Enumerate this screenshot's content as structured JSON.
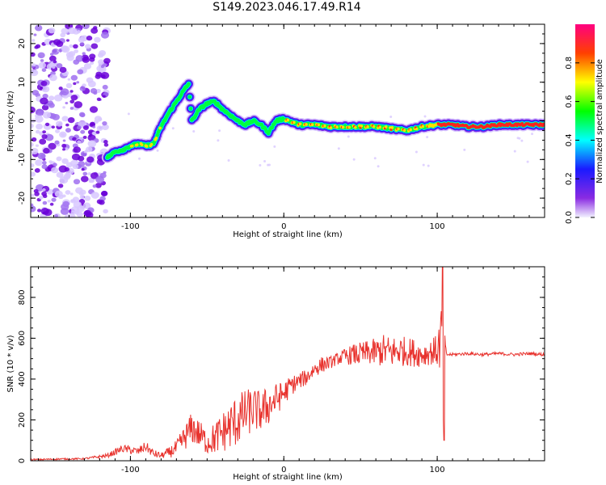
{
  "title": "S149.2023.046.17.49.R14",
  "chart_data": [
    {
      "type": "heatmap",
      "title": "S149.2023.046.17.49.R14",
      "xlabel": "Height of straight line (km)",
      "ylabel": "Frequency (Hz)",
      "xlim": [
        -165,
        170
      ],
      "ylim": [
        -25,
        25
      ],
      "x_ticks": [
        -100,
        0,
        100
      ],
      "y_ticks": [
        -20,
        -10,
        0,
        10,
        20
      ],
      "colorbar": {
        "label": "Normalized spectral amplitude",
        "range": [
          0,
          1
        ],
        "ticks": [
          "0.0",
          "0.2",
          "0.4",
          "0.6",
          "0.8"
        ]
      },
      "ridge": [
        {
          "x": -115,
          "f": -9.5
        },
        {
          "x": -110,
          "f": -8
        },
        {
          "x": -105,
          "f": -7.5
        },
        {
          "x": -100,
          "f": -6.5
        },
        {
          "x": -95,
          "f": -6
        },
        {
          "x": -90,
          "f": -6.5
        },
        {
          "x": -85,
          "f": -6
        },
        {
          "x": -80,
          "f": -1.5
        },
        {
          "x": -75,
          "f": 2
        },
        {
          "x": -70,
          "f": 5
        },
        {
          "x": -65,
          "f": 8
        },
        {
          "x": -62,
          "f": 9.5
        },
        {
          "x": -60,
          "f": 0
        },
        {
          "x": -55,
          "f": 3
        },
        {
          "x": -50,
          "f": 4.5
        },
        {
          "x": -45,
          "f": 5
        },
        {
          "x": -40,
          "f": 3
        },
        {
          "x": -35,
          "f": 1.5
        },
        {
          "x": -30,
          "f": 0
        },
        {
          "x": -25,
          "f": -1
        },
        {
          "x": -20,
          "f": 0
        },
        {
          "x": -15,
          "f": -1
        },
        {
          "x": -10,
          "f": -3
        },
        {
          "x": -5,
          "f": 0
        },
        {
          "x": 0,
          "f": 0.5
        },
        {
          "x": 10,
          "f": -1
        },
        {
          "x": 20,
          "f": -1
        },
        {
          "x": 30,
          "f": -1.5
        },
        {
          "x": 40,
          "f": -1.5
        },
        {
          "x": 50,
          "f": -1.5
        },
        {
          "x": 60,
          "f": -1.5
        },
        {
          "x": 70,
          "f": -2
        },
        {
          "x": 80,
          "f": -2.5
        },
        {
          "x": 90,
          "f": -1.5
        },
        {
          "x": 100,
          "f": -1
        },
        {
          "x": 110,
          "f": -1
        },
        {
          "x": 120,
          "f": -1.5
        },
        {
          "x": 130,
          "f": -1.5
        },
        {
          "x": 140,
          "f": -1
        },
        {
          "x": 150,
          "f": -1
        },
        {
          "x": 160,
          "f": -1
        },
        {
          "x": 170,
          "f": -1
        }
      ]
    },
    {
      "type": "line",
      "xlabel": "Height of straight line (km)",
      "ylabel": "SNR (10 * v/v)",
      "xlim": [
        -165,
        170
      ],
      "ylim": [
        0,
        950
      ],
      "x_ticks": [
        -100,
        0,
        100
      ],
      "y_ticks": [
        0,
        200,
        400,
        600,
        800
      ],
      "color": "#e8322d",
      "series": [
        {
          "x": [
            -165,
            -150,
            -130,
            -115,
            -105,
            -95,
            -90,
            -85,
            -80,
            -75,
            -70,
            -65,
            -60,
            -55,
            -50,
            -45,
            -40,
            -35,
            -30,
            -25,
            -20,
            -15,
            -10,
            -5,
            0,
            5,
            10,
            15,
            20,
            25,
            30,
            35,
            40,
            45,
            50,
            55,
            60,
            65,
            70,
            75,
            80,
            85,
            90,
            95,
            100,
            103,
            104,
            105,
            106,
            110,
            120,
            130,
            140,
            150,
            160,
            170
          ],
          "y": [
            5,
            8,
            10,
            25,
            60,
            45,
            70,
            35,
            25,
            40,
            60,
            110,
            160,
            130,
            90,
            110,
            140,
            170,
            200,
            230,
            250,
            240,
            270,
            300,
            330,
            370,
            390,
            410,
            450,
            470,
            480,
            500,
            510,
            520,
            520,
            530,
            530,
            540,
            530,
            540,
            535,
            530,
            520,
            530,
            540,
            600,
            120,
            560,
            520,
            520,
            525,
            520,
            525,
            520,
            525,
            520
          ],
          "amp": [
            4,
            4,
            4,
            10,
            20,
            20,
            25,
            20,
            15,
            25,
            40,
            60,
            80,
            70,
            60,
            80,
            100,
            120,
            130,
            120,
            110,
            100,
            100,
            80,
            60,
            50,
            40,
            40,
            40,
            40,
            30,
            30,
            40,
            50,
            60,
            60,
            70,
            80,
            80,
            80,
            70,
            70,
            60,
            60,
            80,
            200,
            80,
            60,
            10,
            8,
            8,
            8,
            8,
            8,
            8,
            8
          ]
        }
      ]
    }
  ]
}
